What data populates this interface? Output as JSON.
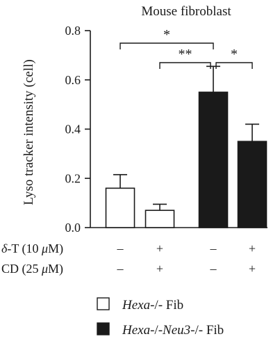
{
  "chart_data": {
    "type": "bar",
    "title": "Mouse fibroblast",
    "ylabel": "Lyso tracker intensity (cell)",
    "ylim": [
      0,
      0.8
    ],
    "yticks": [
      "0.0",
      "0.2",
      "0.4",
      "0.6",
      "0.8"
    ],
    "ytick_values": [
      0,
      0.2,
      0.4,
      0.6,
      0.8
    ],
    "bars": [
      {
        "value": 0.16,
        "error": 0.055,
        "series": 0
      },
      {
        "value": 0.07,
        "error": 0.025,
        "series": 0
      },
      {
        "value": 0.55,
        "error": 0.105,
        "series": 1
      },
      {
        "value": 0.35,
        "error": 0.07,
        "series": 1
      }
    ],
    "treatments": [
      {
        "prefix": "δ",
        "label": "-T (10 ",
        "unit": "μ",
        "suffix": "M)",
        "marks": [
          "–",
          "+",
          "–",
          "+"
        ]
      },
      {
        "prefix": "",
        "label": "CD (25 ",
        "unit": "μ",
        "suffix": "M)",
        "marks": [
          "–",
          "+",
          "–",
          "+"
        ]
      }
    ],
    "significance": [
      {
        "from": 0,
        "to": 2,
        "label": "*"
      },
      {
        "from": 1,
        "to": 2,
        "label": "**"
      },
      {
        "from": 2,
        "to": 3,
        "label": "*"
      }
    ],
    "legend": [
      {
        "italic": "Hexa-",
        "text": "/- Fib",
        "fill": "#ffffff"
      },
      {
        "italic": "Hexa-",
        "text": "/-",
        "italic2": "Neu3-",
        "text2": "/- Fib",
        "fill": "#1a1a1a"
      }
    ],
    "colors": {
      "series_0": "#ffffff",
      "series_1": "#1a1a1a",
      "stroke": "#1a1a1a"
    }
  }
}
